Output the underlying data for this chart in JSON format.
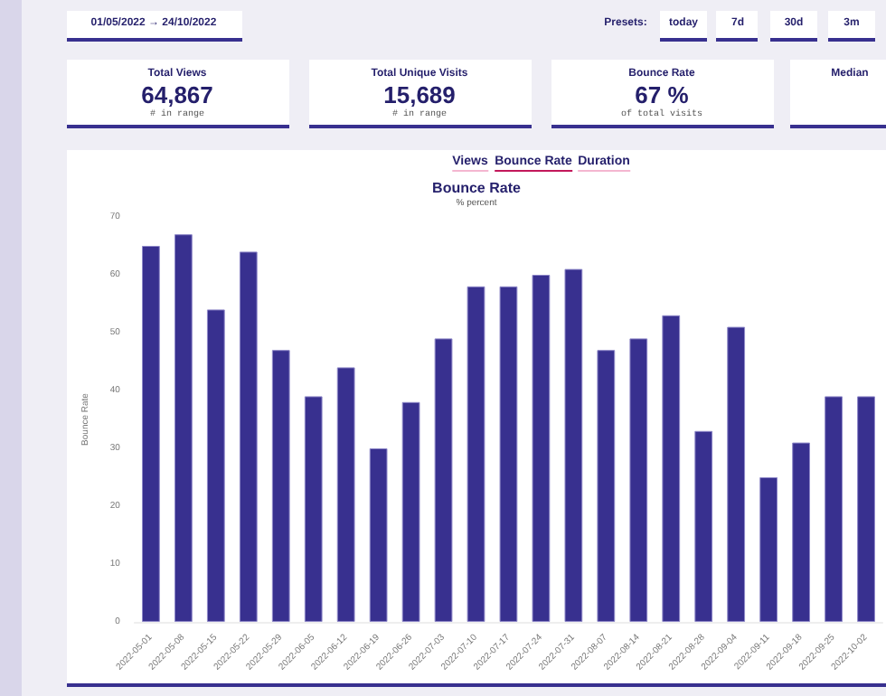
{
  "chart_data": {
    "type": "bar",
    "title": "Bounce Rate",
    "subtitle": "% percent",
    "ylabel": "Bounce Rate",
    "categories": [
      "2022-05-01",
      "2022-05-08",
      "2022-05-15",
      "2022-05-22",
      "2022-05-29",
      "2022-06-05",
      "2022-06-12",
      "2022-06-19",
      "2022-06-26",
      "2022-07-03",
      "2022-07-10",
      "2022-07-17",
      "2022-07-24",
      "2022-07-31",
      "2022-08-07",
      "2022-08-14",
      "2022-08-21",
      "2022-08-28",
      "2022-09-04",
      "2022-09-11",
      "2022-09-18",
      "2022-09-25",
      "2022-10-02"
    ],
    "values": [
      65,
      67,
      54,
      64,
      47,
      39,
      44,
      30,
      38,
      49,
      58,
      58,
      60,
      61,
      47,
      49,
      53,
      33,
      51,
      25,
      31,
      39,
      39
    ],
    "color": "#38308f",
    "ylim": [
      0,
      70
    ],
    "yticks": [
      0,
      10,
      20,
      30,
      40,
      50,
      60,
      70
    ],
    "grid": false,
    "annotations": [
      "01/05/2022 → 24/10/2022",
      "Presets:",
      "today",
      "7d",
      "30d",
      "3m",
      "Total Views",
      "64,867",
      "# in range",
      "Total Unique Visits",
      "15,689",
      "# in range",
      "Bounce Rate",
      "67 %",
      "of total visits",
      "Median",
      "Views",
      "Bounce Rate",
      "Duration"
    ]
  }
}
